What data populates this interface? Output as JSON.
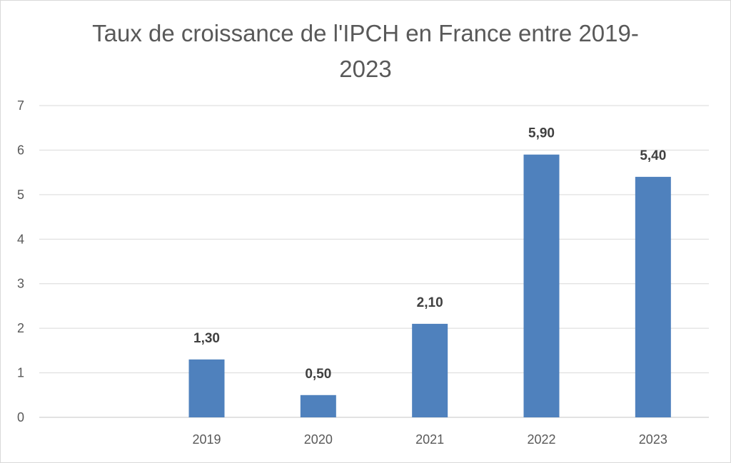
{
  "chart_data": {
    "type": "bar",
    "title": "Taux de croissance de l'IPCH en France entre 2019-2023",
    "xlabel": "",
    "ylabel": "",
    "categories": [
      "",
      "2019",
      "2020",
      "2021",
      "2022",
      "2023"
    ],
    "values": [
      null,
      1.3,
      0.5,
      2.1,
      5.9,
      5.4
    ],
    "data_labels": [
      "",
      "1,30",
      "0,50",
      "2,10",
      "5,90",
      "5,40"
    ],
    "ylim": [
      0,
      7
    ],
    "y_ticks": [
      "0",
      "1",
      "2",
      "3",
      "4",
      "5",
      "6",
      "7"
    ],
    "grid": true,
    "legend": "none",
    "bar_color": "#4f81bd",
    "grid_color": "#d9d9d9"
  }
}
